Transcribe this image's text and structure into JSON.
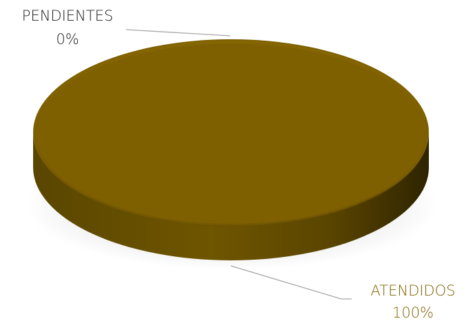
{
  "chart_data": {
    "type": "pie",
    "style": "3d",
    "title": "",
    "slices": [
      {
        "label": "PENDIENTES",
        "value": 0,
        "value_label": "0%",
        "color": "#808080"
      },
      {
        "label": "ATENDIDOS",
        "value": 100,
        "value_label": "100%",
        "color": "#7F6000"
      }
    ],
    "legend": "none",
    "data_labels": "outside-with-leader-lines"
  },
  "colors": {
    "pie_top": "#7F6000",
    "pie_side_light": "#6E5400",
    "pie_side_dark": "#3A2D00",
    "leader_line": "#A6A6A6",
    "pendientes_label": "#1A1A1A",
    "atendidos_label": "#7F6000"
  }
}
